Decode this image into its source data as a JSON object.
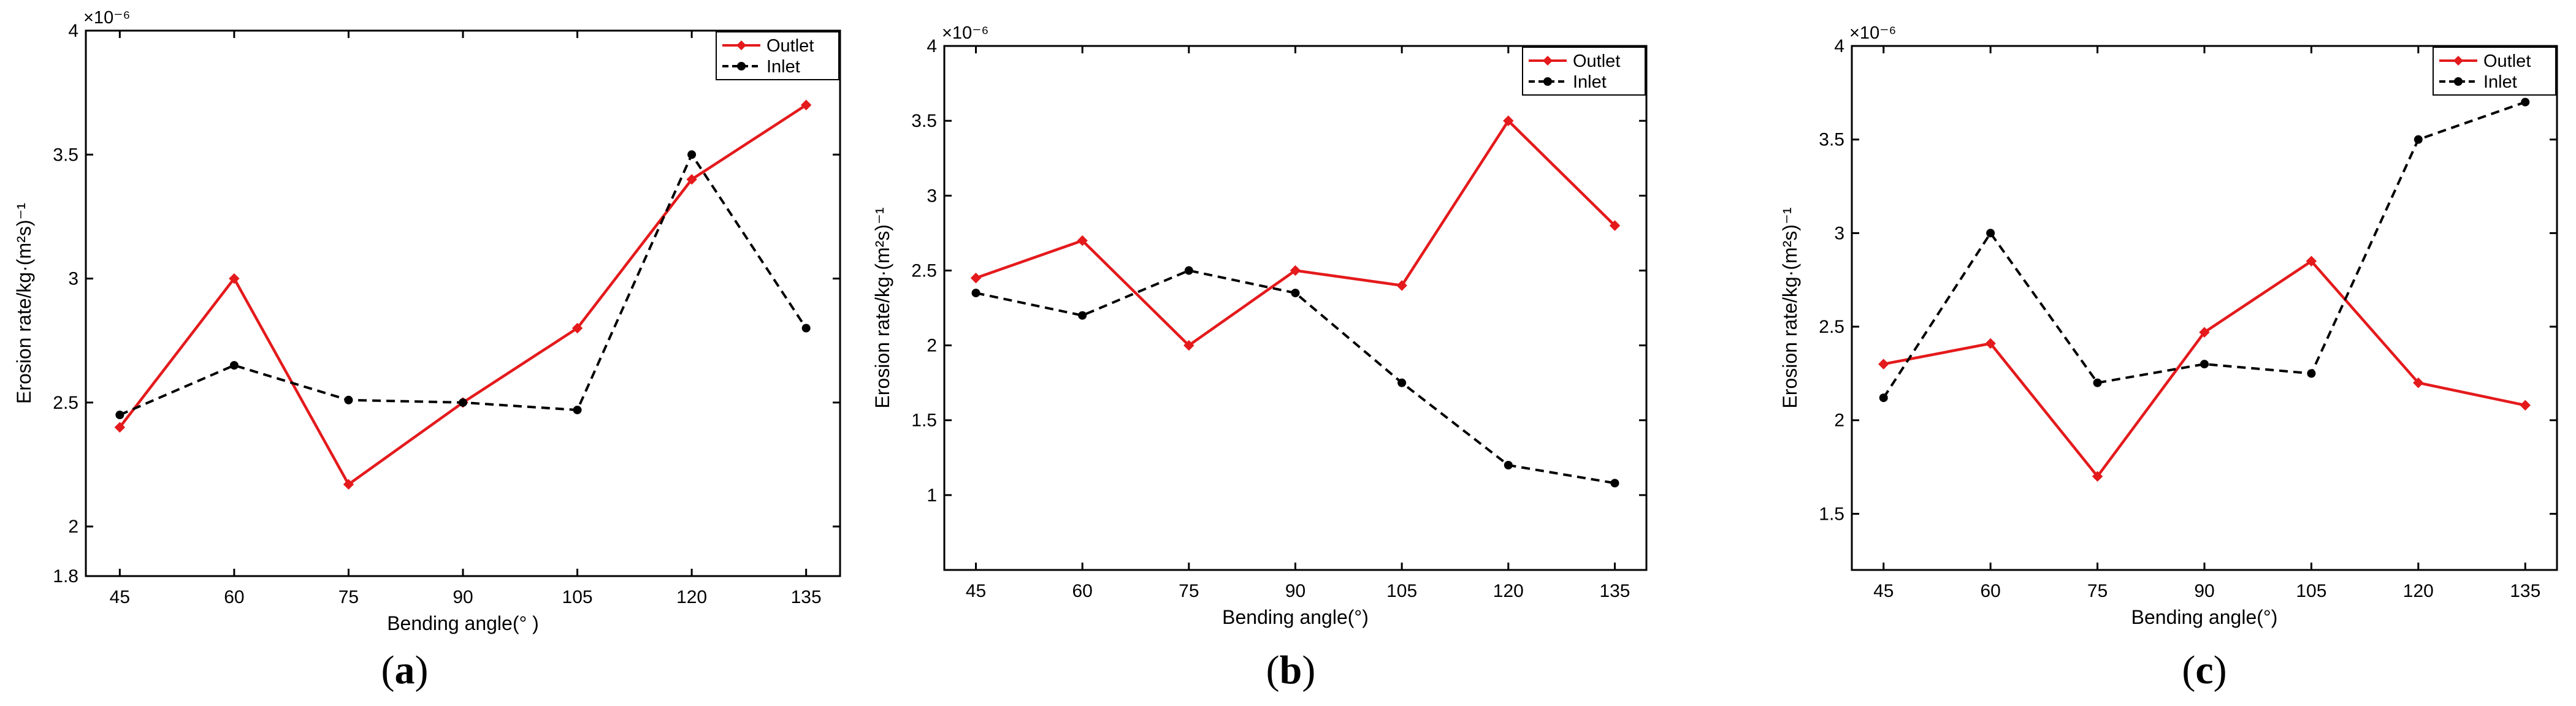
{
  "colors": {
    "outlet": "#e41a1c",
    "inlet": "#000000"
  },
  "chart_data": [
    {
      "type": "line",
      "panel_label": "a",
      "categories": [
        "45",
        "60",
        "75",
        "90",
        "105",
        "120",
        "135"
      ],
      "x": [
        45,
        60,
        75,
        90,
        105,
        120,
        135
      ],
      "xlabel": "Bending angle(° )",
      "ylabel": "Erosion rate/kg·(m²s)⁻¹",
      "ylim": [
        1.8,
        4.0
      ],
      "yticks": [
        1.8,
        2,
        2.5,
        3,
        3.5,
        4
      ],
      "ytick_labels": [
        "1.8",
        "2",
        "2.5",
        "3",
        "3.5",
        "4"
      ],
      "exponent_label": "×10⁻⁶",
      "legend_position": "top-right",
      "series": [
        {
          "name": "Outlet",
          "style": "solid-diamond",
          "values": [
            2.4,
            3.0,
            2.17,
            2.5,
            2.8,
            3.4,
            3.7
          ]
        },
        {
          "name": "Inlet",
          "style": "dashed-circle",
          "values": [
            2.45,
            2.65,
            2.51,
            2.5,
            2.47,
            3.5,
            2.8
          ]
        }
      ]
    },
    {
      "type": "line",
      "panel_label": "b",
      "categories": [
        "45",
        "60",
        "75",
        "90",
        "105",
        "120",
        "135"
      ],
      "x": [
        45,
        60,
        75,
        90,
        105,
        120,
        135
      ],
      "xlabel": "Bending angle(°)",
      "ylabel": "Erosion rate/kg·(m²s)⁻¹",
      "ylim": [
        0.5,
        4.0
      ],
      "yticks": [
        1,
        1.5,
        2,
        2.5,
        3,
        3.5,
        4
      ],
      "ytick_labels": [
        "1",
        "1.5",
        "2",
        "2.5",
        "3",
        "3.5",
        "4"
      ],
      "exponent_label": "×10⁻⁶",
      "legend_position": "top-right",
      "series": [
        {
          "name": "Outlet",
          "style": "solid-diamond",
          "values": [
            2.45,
            2.7,
            2.0,
            2.5,
            2.4,
            3.5,
            2.8
          ]
        },
        {
          "name": "Inlet",
          "style": "dashed-circle",
          "values": [
            2.35,
            2.2,
            2.5,
            2.35,
            1.75,
            1.2,
            1.08
          ]
        }
      ]
    },
    {
      "type": "line",
      "panel_label": "c",
      "categories": [
        "45",
        "60",
        "75",
        "90",
        "105",
        "120",
        "135"
      ],
      "x": [
        45,
        60,
        75,
        90,
        105,
        120,
        135
      ],
      "xlabel": "Bending angle(°)",
      "ylabel": "Erosion rate/kg·(m²s)⁻¹",
      "ylim": [
        1.2,
        4.0
      ],
      "yticks": [
        1.5,
        2,
        2.5,
        3,
        3.5,
        4
      ],
      "ytick_labels": [
        "1.5",
        "2",
        "2.5",
        "3",
        "3.5",
        "4"
      ],
      "exponent_label": "×10⁻⁶",
      "legend_position": "top-right",
      "series": [
        {
          "name": "Outlet",
          "style": "solid-diamond",
          "values": [
            2.3,
            2.41,
            1.7,
            2.47,
            2.85,
            2.2,
            2.08
          ]
        },
        {
          "name": "Inlet",
          "style": "dashed-circle",
          "values": [
            2.12,
            3.0,
            2.2,
            2.3,
            2.25,
            3.5,
            3.7
          ]
        }
      ]
    }
  ]
}
